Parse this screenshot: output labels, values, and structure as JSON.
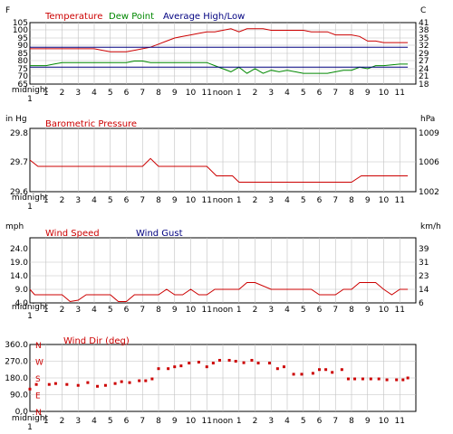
{
  "x_ticks": [
    "midnight",
    "1",
    "2",
    "3",
    "4",
    "5",
    "6",
    "7",
    "8",
    "9",
    "10",
    "11",
    "noon",
    "1",
    "2",
    "3",
    "4",
    "5",
    "6",
    "7",
    "8",
    "9",
    "10",
    "11"
  ],
  "colors": {
    "red": "#cc0000",
    "green": "#008800",
    "navy": "#000080",
    "grid": "#c0c0c0"
  },
  "chart_data": [
    {
      "type": "line",
      "title": "",
      "left_unit": "F",
      "right_unit": "C",
      "ylim": [
        65,
        105
      ],
      "y_ticks": [
        "105",
        "100",
        "95",
        "90",
        "85",
        "80",
        "75",
        "70",
        "65"
      ],
      "right_ticks": [
        "41",
        "38",
        "35",
        "32",
        "29",
        "27",
        "24",
        "21",
        "18"
      ],
      "legend": [
        {
          "label": "Temperature",
          "color": "#cc0000"
        },
        {
          "label": "Dew Point",
          "color": "#008800"
        },
        {
          "label": "Average High/Low",
          "color": "#000080"
        }
      ],
      "series": [
        {
          "name": "Temperature",
          "color": "#cc0000",
          "x": [
            0,
            1,
            2,
            3,
            4,
            4.5,
            5,
            6,
            6.5,
            7,
            7.5,
            8,
            8.5,
            9,
            9.5,
            10,
            10.5,
            11,
            11.5,
            12,
            12.5,
            13,
            13.5,
            14,
            14.5,
            15,
            15.5,
            16,
            16.5,
            17,
            17.5,
            18,
            18.5,
            19,
            19.5,
            20,
            20.5,
            21,
            21.5,
            22,
            22.5,
            23,
            23.5
          ],
          "y": [
            88,
            88,
            88,
            88,
            88,
            87,
            86,
            86,
            87,
            88,
            89,
            91,
            93,
            95,
            96,
            97,
            98,
            99,
            99,
            100,
            101,
            99,
            101,
            101,
            101,
            100,
            100,
            100,
            100,
            100,
            99,
            99,
            99,
            97,
            97,
            97,
            96,
            93,
            93,
            92,
            92,
            92,
            92
          ]
        },
        {
          "name": "Dew Point",
          "color": "#008800",
          "x": [
            0,
            0.5,
            1,
            1.5,
            2,
            3,
            4,
            5,
            5.5,
            6,
            6.5,
            7,
            7.5,
            8,
            9,
            10,
            11,
            11.5,
            12,
            12.5,
            13,
            13.5,
            14,
            14.5,
            15,
            15.5,
            16,
            16.5,
            17,
            17.5,
            18,
            18.5,
            19,
            19.5,
            20,
            20.5,
            21,
            21.5,
            22,
            23,
            23.5
          ],
          "y": [
            77,
            77,
            77,
            78,
            79,
            79,
            79,
            79,
            79,
            79,
            80,
            80,
            79,
            79,
            79,
            79,
            79,
            77,
            75,
            73,
            76,
            72,
            75,
            72,
            74,
            73,
            74,
            73,
            72,
            72,
            72,
            72,
            73,
            74,
            74,
            76,
            75,
            77,
            77,
            78,
            78
          ]
        },
        {
          "name": "Average High",
          "color": "#000080",
          "x": [
            0,
            23.5
          ],
          "y": [
            89,
            89
          ]
        },
        {
          "name": "Average Low",
          "color": "#000080",
          "x": [
            0,
            23.5
          ],
          "y": [
            76,
            76
          ]
        }
      ]
    },
    {
      "type": "line",
      "title": "Barometric Pressure",
      "left_unit": "in Hg",
      "right_unit": "hPa",
      "ylim": [
        29.6,
        29.8
      ],
      "y_ticks": [
        "29.8",
        "29.7",
        "29.6"
      ],
      "right_ticks": [
        "1009",
        "1006",
        "1002"
      ],
      "legend": [
        {
          "label": "Barometric Pressure",
          "color": "#cc0000"
        }
      ],
      "series": [
        {
          "name": "Barometric Pressure",
          "color": "#cc0000",
          "x": [
            0,
            0.5,
            1,
            2,
            3,
            4,
            5,
            6,
            7,
            7.5,
            7.8,
            8,
            9,
            10,
            11,
            11.6,
            12,
            12.6,
            13,
            14,
            15,
            16,
            17,
            18,
            19,
            20,
            20.6,
            21,
            22,
            23,
            23.5
          ],
          "y": [
            29.7,
            29.68,
            29.68,
            29.68,
            29.68,
            29.68,
            29.68,
            29.68,
            29.68,
            29.705,
            29.69,
            29.68,
            29.68,
            29.68,
            29.68,
            29.65,
            29.65,
            29.65,
            29.63,
            29.63,
            29.63,
            29.63,
            29.63,
            29.63,
            29.63,
            29.63,
            29.65,
            29.65,
            29.65,
            29.65,
            29.65
          ]
        }
      ]
    },
    {
      "type": "line",
      "title": "",
      "left_unit": "mph",
      "right_unit": "km/h",
      "ylim": [
        4.0,
        28.0
      ],
      "y_ticks": [
        "24.0",
        "19.0",
        "14.0",
        "9.0",
        "4.0"
      ],
      "y_tick_values": [
        24,
        19,
        14,
        9,
        4
      ],
      "right_ticks": [
        "39",
        "31",
        "23",
        "14",
        "6"
      ],
      "legend": [
        {
          "label": "Wind Speed",
          "color": "#cc0000"
        },
        {
          "label": "Wind Gust",
          "color": "#000080"
        }
      ],
      "series": [
        {
          "name": "Wind Speed",
          "color": "#cc0000",
          "x": [
            0,
            0.3,
            1,
            2,
            2.5,
            3,
            3.5,
            4,
            5,
            5.5,
            6,
            6.5,
            7,
            8,
            8.5,
            9,
            9.5,
            10,
            10.5,
            11,
            11.5,
            12,
            13,
            13.5,
            14,
            15,
            16,
            17,
            17.5,
            18,
            18.5,
            19,
            19.5,
            20,
            20.5,
            21,
            21.5,
            22,
            22.5,
            23,
            23.5
          ],
          "y": [
            9,
            7,
            7,
            7,
            4.5,
            5,
            7,
            7,
            7,
            4.5,
            4.5,
            7,
            7,
            7,
            9,
            7,
            7,
            9,
            7,
            7,
            9,
            9,
            9,
            11.5,
            11.5,
            9,
            9,
            9,
            9,
            7,
            7,
            7,
            9,
            9,
            11.5,
            11.5,
            11.5,
            9,
            7,
            9,
            9
          ]
        }
      ]
    },
    {
      "type": "scatter",
      "title": "Wind Dir (deg)",
      "ylim": [
        0,
        360
      ],
      "y_ticks": [
        "360.0",
        "270.0",
        "180.0",
        "90.0",
        "0.0"
      ],
      "compass": [
        "N",
        "W",
        "S",
        "E",
        "N"
      ],
      "series": [
        {
          "name": "Wind Dir (deg)",
          "color": "#cc0000",
          "x": [
            0,
            0.4,
            1.2,
            1.6,
            2.3,
            3,
            3.6,
            4.2,
            4.7,
            5.3,
            5.7,
            6.2,
            6.8,
            7.2,
            7.6,
            8,
            8.6,
            9,
            9.4,
            9.9,
            10.5,
            11,
            11.4,
            11.8,
            12.4,
            12.8,
            13.3,
            13.8,
            14.2,
            14.9,
            15.4,
            15.8,
            16.4,
            16.9,
            17.6,
            18,
            18.4,
            18.8,
            19.4,
            19.8,
            20.2,
            20.7,
            21.2,
            21.7,
            22.2,
            22.8,
            23.2,
            23.5
          ],
          "y": [
            120,
            145,
            145,
            150,
            145,
            140,
            155,
            135,
            140,
            150,
            160,
            155,
            165,
            165,
            175,
            230,
            230,
            240,
            245,
            260,
            265,
            240,
            260,
            275,
            275,
            270,
            262,
            275,
            260,
            260,
            230,
            240,
            200,
            200,
            205,
            225,
            225,
            210,
            225,
            175,
            175,
            175,
            175,
            175,
            170,
            170,
            170,
            180
          ]
        }
      ]
    }
  ]
}
